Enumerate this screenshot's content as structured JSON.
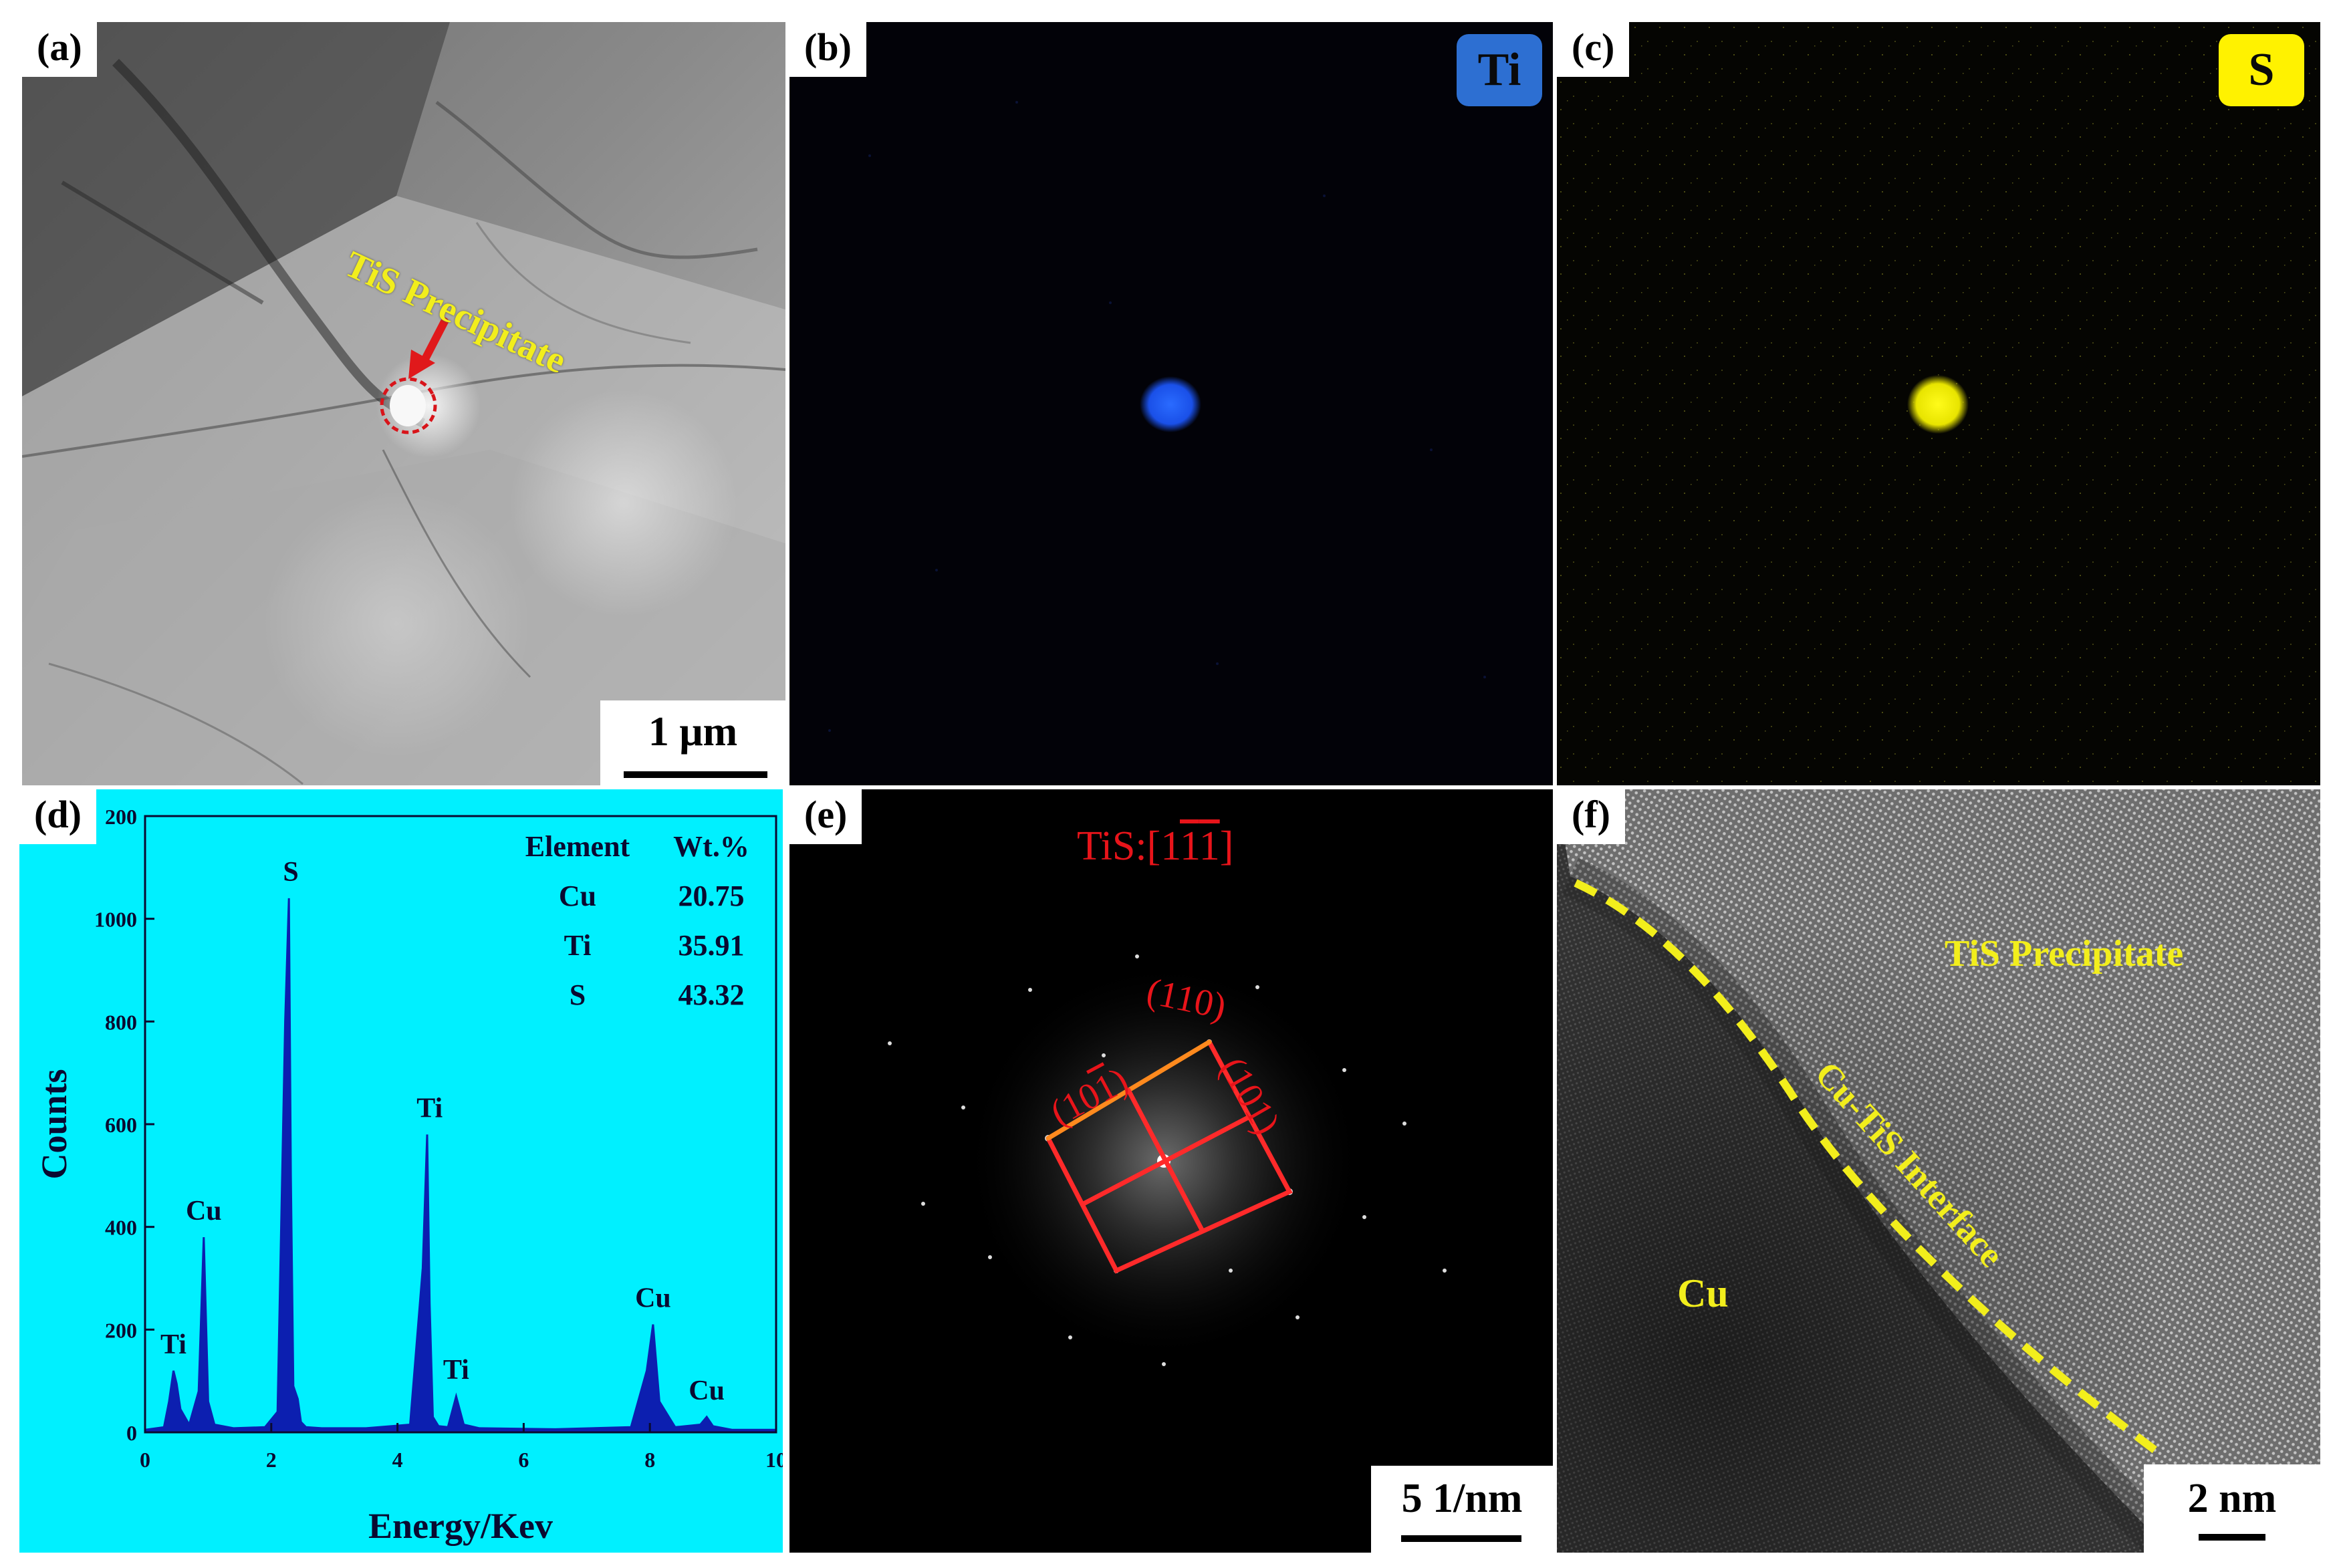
{
  "panels": {
    "a": {
      "label": "(a)",
      "annotation": "TiS Precipitate",
      "scale_bar": "1 μm",
      "colors": {
        "annotation": "#f2ee1c",
        "arrow": "#e0191b",
        "outline": "#d8141a"
      }
    },
    "b": {
      "label": "(b)",
      "badge": "Ti",
      "colors": {
        "badge_bg": "#2d6fd2",
        "badge_text": "#0a0a0a",
        "dot": "#1a5cff"
      }
    },
    "c": {
      "label": "(c)",
      "badge": "S",
      "colors": {
        "badge_bg": "#fff200",
        "badge_text": "#0a0a0a",
        "dot": "#f4f000"
      }
    },
    "d": {
      "label": "(d)",
      "colors": {
        "background": "#00f0ff",
        "spectrum": "#0c1fb0"
      },
      "table": {
        "headers": [
          "Element",
          "Wt.%"
        ],
        "rows": [
          [
            "Cu",
            "20.75"
          ],
          [
            "Ti",
            "35.91"
          ],
          [
            "S",
            "43.32"
          ]
        ]
      }
    },
    "e": {
      "label": "(e)",
      "zone_axis": "TiS:[1",
      "zone_axis_digits": [
        "1",
        "1"
      ],
      "zone_axis_close": "]",
      "planes": [
        "(110)",
        "(10",
        "1",
        ")",
        "(101)"
      ],
      "scale_bar": "5 1/nm",
      "colors": {
        "lines": "#ff2a2a",
        "edge": "#ff8a1e",
        "text": "#e8141a"
      }
    },
    "f": {
      "label": "(f)",
      "labels": {
        "precipitate": "TiS Precipitate",
        "interface": "Cu-TiS Interface",
        "matrix": "Cu"
      },
      "scale_bar": "2 nm",
      "colors": {
        "text": "#f2ee1c",
        "dash": "#f2ee1c"
      }
    }
  },
  "chart_data": {
    "type": "line",
    "title": "",
    "xlabel": "Energy/Kev",
    "ylabel": "Counts",
    "xlim": [
      0,
      10
    ],
    "ylim": [
      0,
      1200
    ],
    "x_ticks": [
      0,
      2,
      4,
      6,
      8,
      10
    ],
    "y_ticks": [
      0,
      200,
      400,
      600,
      800,
      1000
    ],
    "y_top_label": "200",
    "grid": false,
    "series": [
      {
        "x": [
          0.0,
          0.3,
          0.38,
          0.45,
          0.5,
          0.56,
          0.7,
          0.85,
          0.93,
          1.0,
          1.1,
          1.4,
          1.9,
          2.1,
          2.22,
          2.28,
          2.31,
          2.35,
          2.42,
          2.47,
          2.55,
          2.8,
          3.5,
          4.2,
          4.4,
          4.47,
          4.51,
          4.56,
          4.65,
          4.8,
          4.93,
          5.05,
          5.3,
          6.5,
          7.7,
          7.95,
          8.05,
          8.15,
          8.4,
          8.8,
          8.9,
          9.0,
          9.3,
          10.0
        ],
        "y": [
          5,
          10,
          60,
          120,
          95,
          45,
          15,
          80,
          380,
          60,
          15,
          8,
          10,
          40,
          800,
          1040,
          500,
          90,
          65,
          20,
          10,
          8,
          8,
          15,
          320,
          580,
          250,
          30,
          12,
          10,
          70,
          15,
          8,
          6,
          10,
          120,
          210,
          60,
          10,
          15,
          30,
          12,
          5,
          5
        ]
      }
    ],
    "annotations": [
      {
        "text": "Ti",
        "x": 0.45,
        "y": 120
      },
      {
        "text": "Cu",
        "x": 0.93,
        "y": 380
      },
      {
        "text": "S",
        "x": 2.31,
        "y": 1040
      },
      {
        "text": "Ti",
        "x": 4.51,
        "y": 580
      },
      {
        "text": "Ti",
        "x": 4.93,
        "y": 70
      },
      {
        "text": "Cu",
        "x": 8.05,
        "y": 210
      },
      {
        "text": "Cu",
        "x": 8.9,
        "y": 30
      }
    ]
  }
}
